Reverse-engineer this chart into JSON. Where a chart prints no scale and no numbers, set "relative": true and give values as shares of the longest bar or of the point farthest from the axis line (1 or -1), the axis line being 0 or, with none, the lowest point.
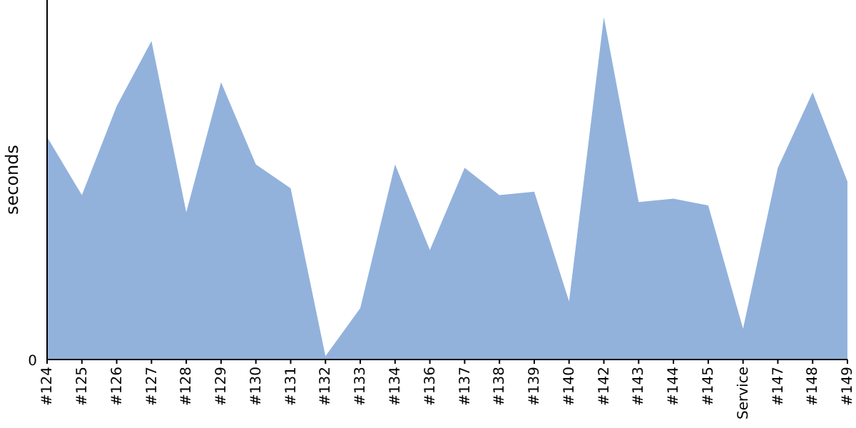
{
  "chart_data": {
    "type": "area",
    "ylabel": "seconds",
    "relative": true,
    "annotations": [
      "0"
    ],
    "categories": [
      "#124",
      "#125",
      "#126",
      "#127",
      "#128",
      "#129",
      "#130",
      "#131",
      "#132",
      "#133",
      "#134",
      "#136",
      "#137",
      "#138",
      "#139",
      "#140",
      "#142",
      "#143",
      "#144",
      "#145",
      "Service",
      "#147",
      "#148",
      "#149"
    ],
    "series": [
      {
        "color": "#92b2dc",
        "values": [
          0.65,
          0.48,
          0.74,
          0.93,
          0.43,
          0.81,
          0.57,
          0.5,
          0.01,
          0.15,
          0.57,
          0.32,
          0.56,
          0.48,
          0.49,
          0.17,
          1,
          0.46,
          0.47,
          0.45,
          0.09,
          0.56,
          0.78,
          0.52
        ]
      }
    ],
    "grid": false,
    "legend": false
  }
}
